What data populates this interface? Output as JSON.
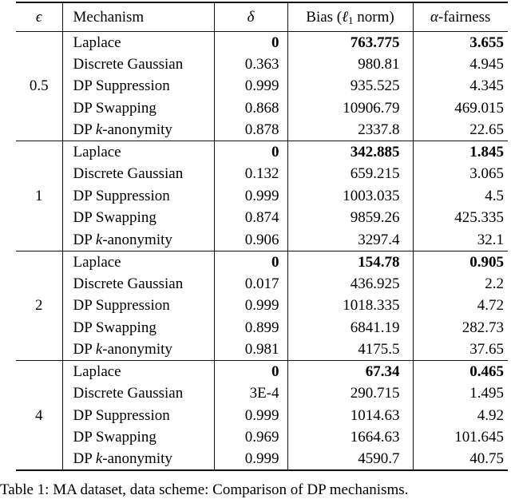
{
  "table": {
    "header": {
      "epsilon": "ϵ",
      "mechanism": "Mechanism",
      "delta": "δ",
      "bias_pre": "Bias (",
      "bias_ell": "ℓ",
      "bias_sub": "1",
      "bias_post": " norm)",
      "alpha": "α",
      "alpha_post": "-fairness"
    },
    "mechanisms": {
      "laplace": "Laplace",
      "discrete_gaussian": "Discrete Gaussian",
      "dp_suppression": "DP Suppression",
      "dp_swapping": "DP Swapping",
      "dp_k_pre": "DP ",
      "dp_k_italic": "k",
      "dp_k_post": "-anonymity"
    },
    "groups": [
      {
        "epsilon": "0.5",
        "rows": [
          {
            "delta": "0",
            "bias": "763.775",
            "alpha": "3.655"
          },
          {
            "delta": "0.363",
            "bias": "980.81",
            "alpha": "4.945"
          },
          {
            "delta": "0.999",
            "bias": "935.525",
            "alpha": "4.345"
          },
          {
            "delta": "0.868",
            "bias": "10906.79",
            "alpha": "469.015"
          },
          {
            "delta": "0.878",
            "bias": "2337.8",
            "alpha": "22.65"
          }
        ]
      },
      {
        "epsilon": "1",
        "rows": [
          {
            "delta": "0",
            "bias": "342.885",
            "alpha": "1.845"
          },
          {
            "delta": "0.132",
            "bias": "659.215",
            "alpha": "3.065"
          },
          {
            "delta": "0.999",
            "bias": "1003.035",
            "alpha": "4.5"
          },
          {
            "delta": "0.874",
            "bias": "9859.26",
            "alpha": "425.335"
          },
          {
            "delta": "0.906",
            "bias": "3297.4",
            "alpha": "32.1"
          }
        ]
      },
      {
        "epsilon": "2",
        "rows": [
          {
            "delta": "0",
            "bias": "154.78",
            "alpha": "0.905"
          },
          {
            "delta": "0.017",
            "bias": "436.925",
            "alpha": "2.2"
          },
          {
            "delta": "0.999",
            "bias": "1018.335",
            "alpha": "4.72"
          },
          {
            "delta": "0.899",
            "bias": "6841.19",
            "alpha": "282.73"
          },
          {
            "delta": "0.981",
            "bias": "4175.5",
            "alpha": "37.65"
          }
        ]
      },
      {
        "epsilon": "4",
        "rows": [
          {
            "delta": "0",
            "bias": "67.34",
            "alpha": "0.465"
          },
          {
            "delta": "3E-4",
            "bias": "290.715",
            "alpha": "1.495"
          },
          {
            "delta": "0.999",
            "bias": "1014.63",
            "alpha": "4.92"
          },
          {
            "delta": "0.969",
            "bias": "1664.63",
            "alpha": "101.645"
          },
          {
            "delta": "0.999",
            "bias": "4590.7",
            "alpha": "40.75"
          }
        ]
      }
    ]
  },
  "caption": "Table 1: MA dataset, data scheme: Comparison of DP mechanisms."
}
